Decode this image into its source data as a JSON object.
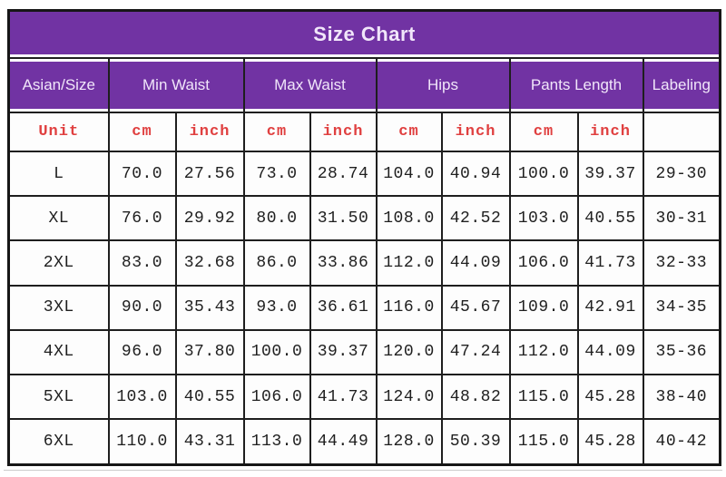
{
  "chart_data": {
    "type": "table",
    "title": "Size Chart",
    "header_groups": [
      {
        "label": "Asian/Size",
        "span": 1
      },
      {
        "label": "Min Waist",
        "span": 2
      },
      {
        "label": "Max Waist",
        "span": 2
      },
      {
        "label": "Hips",
        "span": 2
      },
      {
        "label": "Pants Length",
        "span": 2
      },
      {
        "label": "Labeling",
        "span": 1
      }
    ],
    "unit_row": {
      "label": "Unit",
      "cells": [
        "cm",
        "inch",
        "cm",
        "inch",
        "cm",
        "inch",
        "cm",
        "inch",
        ""
      ]
    },
    "rows": [
      {
        "size": "L",
        "cells": [
          "70.0",
          "27.56",
          "73.0",
          "28.74",
          "104.0",
          "40.94",
          "100.0",
          "39.37",
          "29-30"
        ]
      },
      {
        "size": "XL",
        "cells": [
          "76.0",
          "29.92",
          "80.0",
          "31.50",
          "108.0",
          "42.52",
          "103.0",
          "40.55",
          "30-31"
        ]
      },
      {
        "size": "2XL",
        "cells": [
          "83.0",
          "32.68",
          "86.0",
          "33.86",
          "112.0",
          "44.09",
          "106.0",
          "41.73",
          "32-33"
        ]
      },
      {
        "size": "3XL",
        "cells": [
          "90.0",
          "35.43",
          "93.0",
          "36.61",
          "116.0",
          "45.67",
          "109.0",
          "42.91",
          "34-35"
        ]
      },
      {
        "size": "4XL",
        "cells": [
          "96.0",
          "37.80",
          "100.0",
          "39.37",
          "120.0",
          "47.24",
          "112.0",
          "44.09",
          "35-36"
        ]
      },
      {
        "size": "5XL",
        "cells": [
          "103.0",
          "40.55",
          "106.0",
          "41.73",
          "124.0",
          "48.82",
          "115.0",
          "45.28",
          "38-40"
        ]
      },
      {
        "size": "6XL",
        "cells": [
          "110.0",
          "43.31",
          "113.0",
          "44.49",
          "128.0",
          "50.39",
          "115.0",
          "45.28",
          "40-42"
        ]
      }
    ]
  },
  "colors": {
    "header_purple": "#7133a3",
    "header_text": "#f1e6fa",
    "unit_red": "#e04040",
    "grid_border": "#1e1e1e",
    "data_text": "#1f1f1f",
    "background": "#ffffff"
  }
}
